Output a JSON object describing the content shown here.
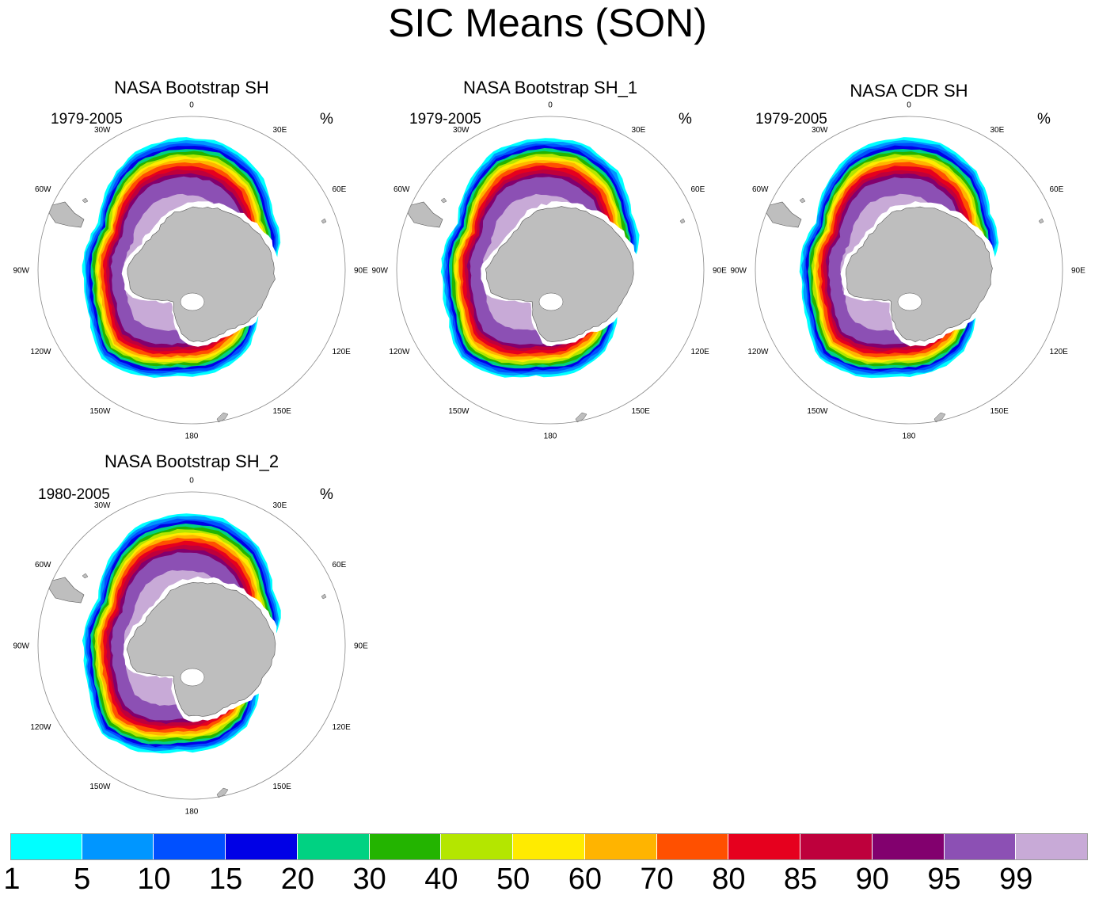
{
  "title": "SIC Means (SON)",
  "panels": [
    {
      "id": "p1",
      "title": "NASA Bootstrap SH",
      "years": "1979-2005",
      "units": "%"
    },
    {
      "id": "p2",
      "title": "NASA Bootstrap SH_1",
      "years": "1979-2005",
      "units": "%"
    },
    {
      "id": "p3",
      "title": "NASA CDR SH",
      "years": "1979-2005",
      "units": "%"
    },
    {
      "id": "p4",
      "title": "NASA Bootstrap SH_2",
      "years": "1980-2005",
      "units": "%"
    }
  ],
  "longitude_labels": [
    "0",
    "30E",
    "60E",
    "90E",
    "120E",
    "150E",
    "180",
    "150W",
    "120W",
    "90W",
    "60W",
    "30W"
  ],
  "colorbar": {
    "colors": [
      "#00ffff",
      "#0096ff",
      "#0050ff",
      "#0000e6",
      "#00d282",
      "#23b400",
      "#b4e600",
      "#ffeb00",
      "#ffb400",
      "#ff5000",
      "#e6001e",
      "#be003c",
      "#82006e",
      "#8c50b4",
      "#c8aad7"
    ],
    "labels": [
      "1",
      "5",
      "10",
      "15",
      "20",
      "30",
      "40",
      "50",
      "60",
      "70",
      "80",
      "85",
      "90",
      "95",
      "99"
    ]
  },
  "colors": {
    "land": "#bebebe",
    "land_edge": "#555555",
    "circle": "#888888",
    "background": "#ffffff"
  }
}
